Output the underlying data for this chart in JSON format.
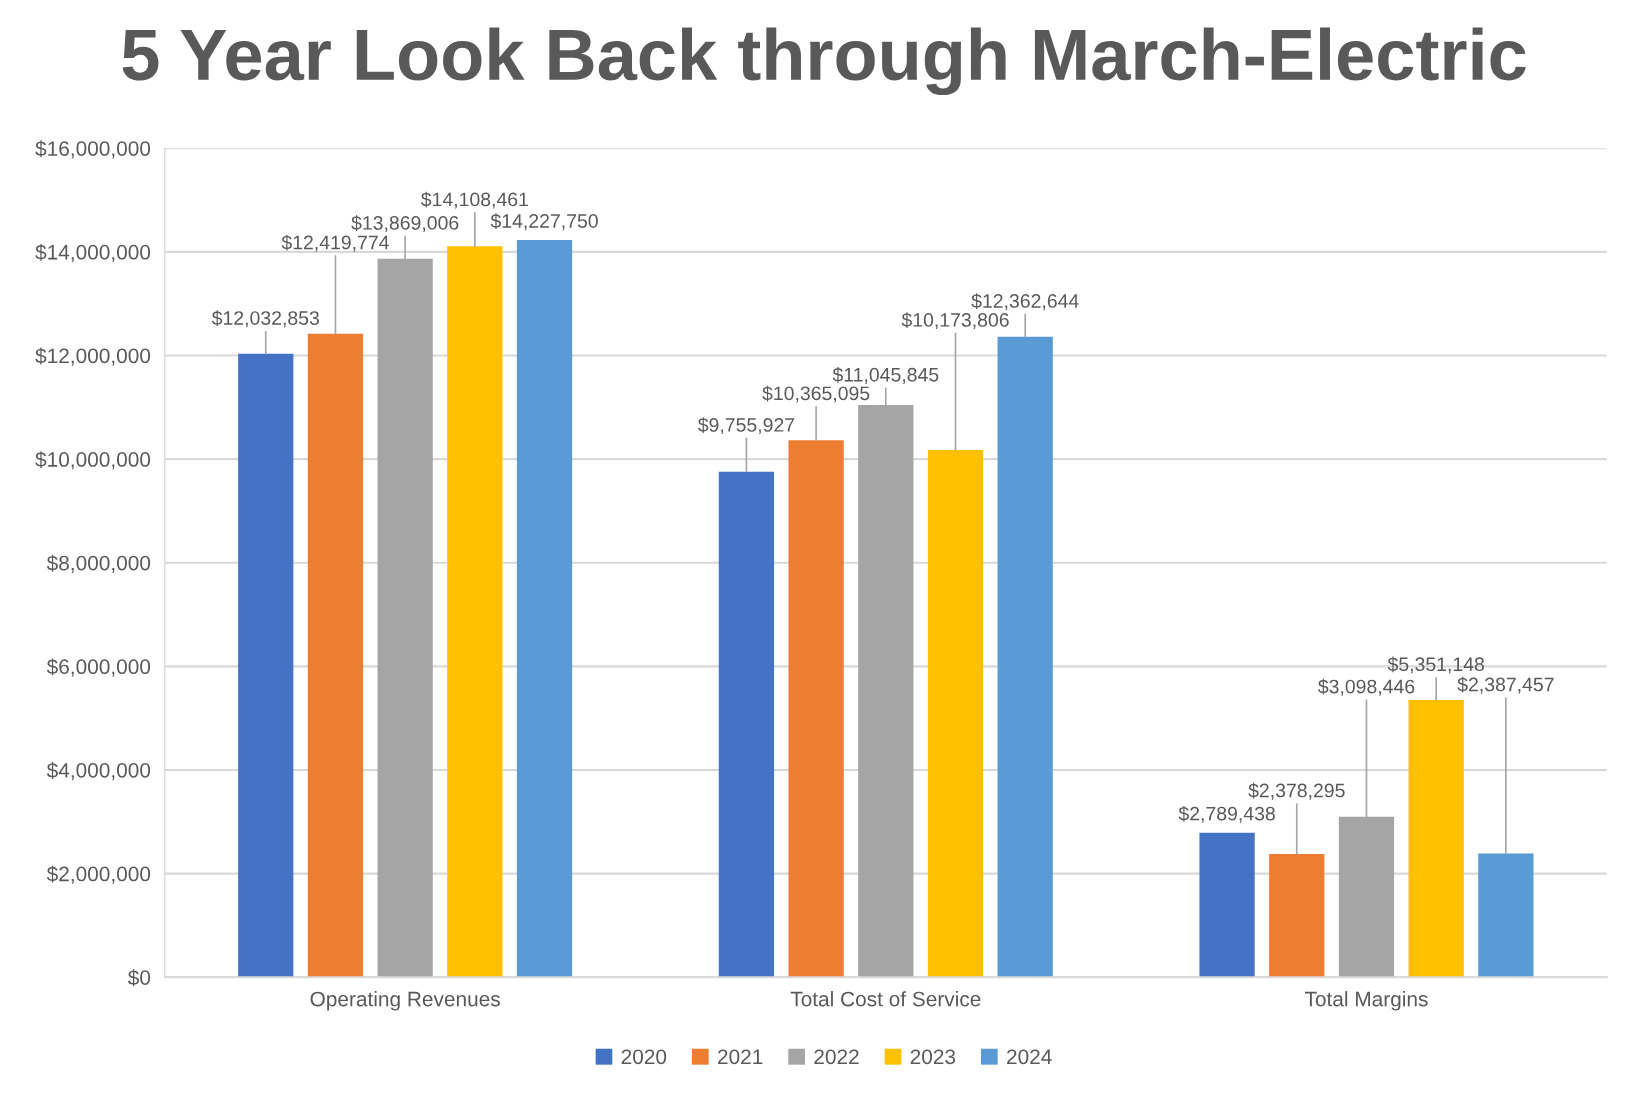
{
  "chart_data": {
    "type": "bar",
    "title": "5 Year Look Back through March-Electric",
    "categories": [
      "Operating Revenues",
      "Total Cost of Service",
      "Total Margins"
    ],
    "series": [
      {
        "name": "2020",
        "color": "#4472c4",
        "values": [
          12032853,
          9755927,
          2789438
        ],
        "value_labels": [
          "$12,032,853",
          "$9,755,927",
          "$2,789,438"
        ]
      },
      {
        "name": "2021",
        "color": "#ed7d31",
        "values": [
          12419774,
          10365095,
          2378295
        ],
        "value_labels": [
          "$12,419,774",
          "$10,365,095",
          "$2,378,295"
        ]
      },
      {
        "name": "2022",
        "color": "#a5a5a5",
        "values": [
          13869006,
          11045845,
          3098446
        ],
        "value_labels": [
          "$13,869,006",
          "$11,045,845",
          "$3,098,446"
        ]
      },
      {
        "name": "2023",
        "color": "#ffc000",
        "values": [
          14108461,
          10173806,
          5351148
        ],
        "value_labels": [
          "$14,108,461",
          "$10,173,806",
          "$5,351,148"
        ]
      },
      {
        "name": "2024",
        "color": "#5b9bd5",
        "values": [
          14227750,
          12362644,
          2387457
        ],
        "value_labels": [
          "$14,227,750",
          "$12,362,644",
          "$2,387,457"
        ]
      }
    ],
    "ylim": [
      0,
      16000000
    ],
    "yticks": [
      {
        "value": 0,
        "label": "$0"
      },
      {
        "value": 2000000,
        "label": "$2,000,000"
      },
      {
        "value": 4000000,
        "label": "$4,000,000"
      },
      {
        "value": 6000000,
        "label": "$6,000,000"
      },
      {
        "value": 8000000,
        "label": "$8,000,000"
      },
      {
        "value": 10000000,
        "label": "$10,000,000"
      },
      {
        "value": 12000000,
        "label": "$12,000,000"
      },
      {
        "value": 14000000,
        "label": "$14,000,000"
      },
      {
        "value": 16000000,
        "label": "$16,000,000"
      }
    ],
    "grid": "y",
    "legend": "bottom"
  }
}
